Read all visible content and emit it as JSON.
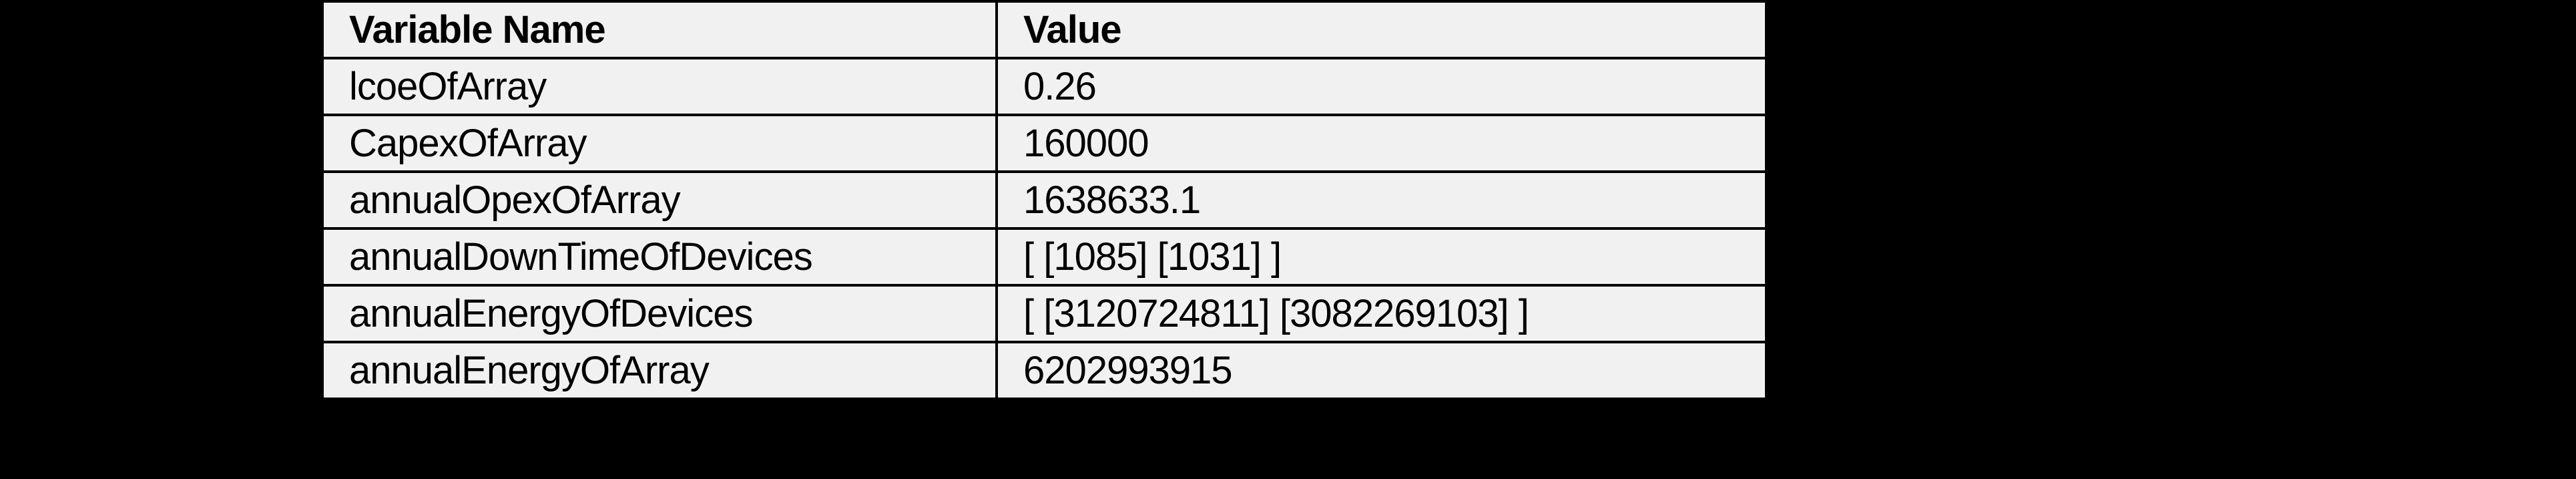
{
  "page": {
    "background_color": "#000000"
  },
  "table": {
    "columns": [
      "Variable Name",
      "Value"
    ],
    "rows": [
      {
        "name": "lcoeOfArray",
        "value": "0.26"
      },
      {
        "name": "CapexOfArray",
        "value": "160000"
      },
      {
        "name": "annualOpexOfArray",
        "value": "1638633.1"
      },
      {
        "name": "annualDownTimeOfDevices",
        "value": "[ [1085] [1031] ]"
      },
      {
        "name": "annualEnergyOfDevices",
        "value": "[ [3120724811] [3082269103] ]"
      },
      {
        "name": "annualEnergyOfArray",
        "value": "6202993915"
      }
    ],
    "style": {
      "cell_background": "#f1f1f1",
      "border_color": "#000000",
      "text_color": "#000000"
    }
  }
}
